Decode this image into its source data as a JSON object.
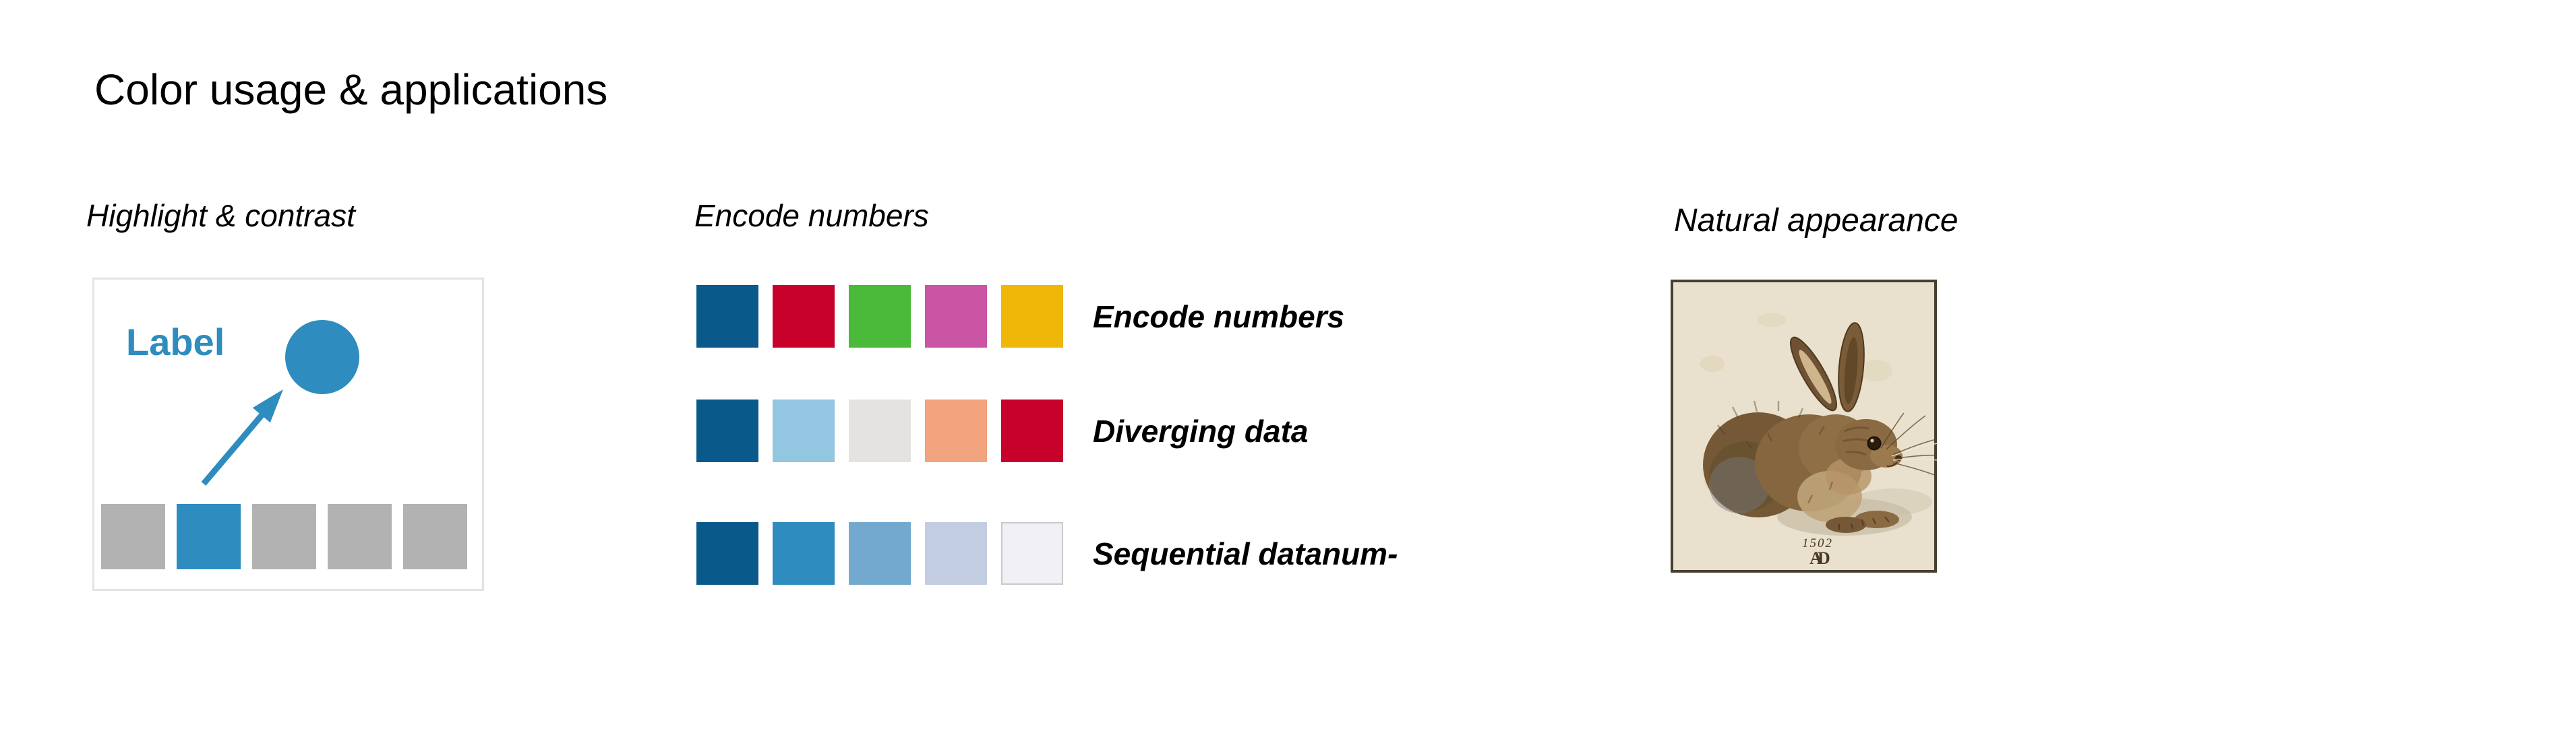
{
  "title": "Color usage & applications",
  "colors": {
    "accent_blue": "#2E8CBE",
    "square_gray": "#B2B2B2",
    "panel_border": "#E3E3E3",
    "text_black": "#000000"
  },
  "highlight_section": {
    "header": "Highlight & contrast",
    "label": "Label",
    "bar_colors": [
      "#B2B2B2",
      "#2E8CBE",
      "#B2B2B2",
      "#B2B2B2",
      "#B2B2B2"
    ]
  },
  "encode_section": {
    "header": "Encode numbers",
    "rows": [
      {
        "label": "Encode numbers",
        "swatches": [
          "#0A598B",
          "#C8012B",
          "#4BBA3B",
          "#CB55A5",
          "#EFB808"
        ]
      },
      {
        "label": "Diverging data",
        "swatches": [
          "#0A598B",
          "#93C6E1",
          "#E4E3E2",
          "#F2A47E",
          "#C8012B"
        ]
      },
      {
        "label": "Sequential datanum-",
        "swatches": [
          "#0A598B",
          "#2E8CBE",
          "#74A9CF",
          "#C3CDE1",
          "#F1F0F6"
        ],
        "last_swatch_border": "#C9C9C9"
      }
    ]
  },
  "natural_section": {
    "header": "Natural appearance",
    "artwork": {
      "description": "Young Hare watercolor on parchment",
      "caption_year": "1502",
      "monogram": "AD",
      "parchment": "#E9E1CD"
    }
  }
}
